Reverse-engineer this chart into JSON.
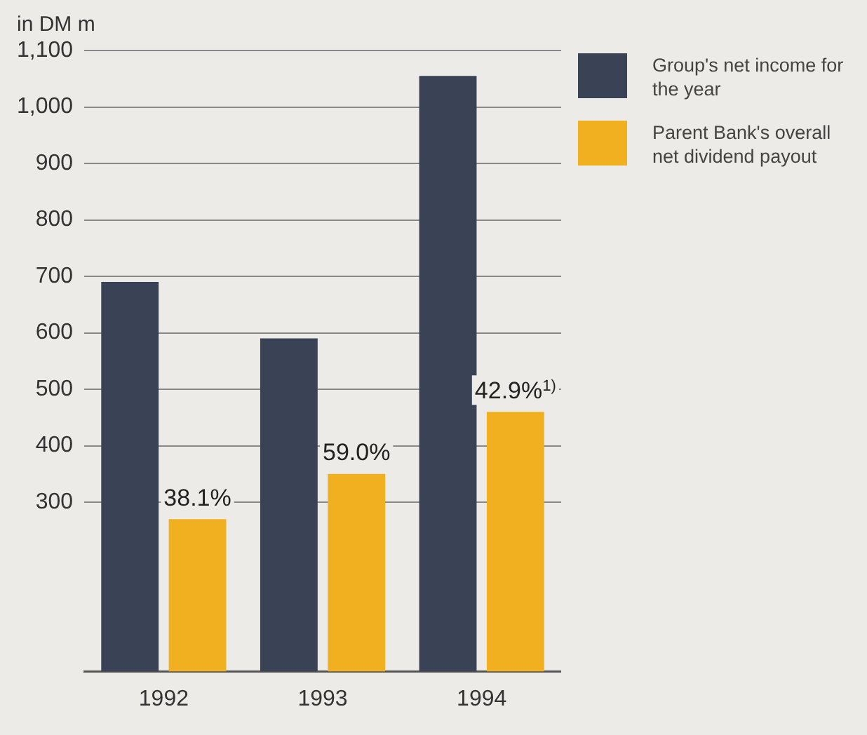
{
  "chart_data": {
    "type": "bar",
    "ylabel": "in DM m",
    "categories": [
      "1992",
      "1993",
      "1994"
    ],
    "series": [
      {
        "name": "Group's net income for the year",
        "color": "#3a4256",
        "values": [
          690,
          590,
          1055
        ]
      },
      {
        "name": "Parent Bank's overall net dividend payout",
        "color": "#f0b020",
        "values": [
          270,
          350,
          460
        ]
      }
    ],
    "annotations": [
      {
        "text": "38.1%",
        "x": "1992",
        "y": 270
      },
      {
        "text": "59.0%",
        "x": "1993",
        "y": 350
      },
      {
        "text": "42.9%$^{1)}$",
        "x": "1994",
        "y": 460
      }
    ],
    "ylim": [
      0,
      1100
    ],
    "yticks": [
      300,
      400,
      500,
      600,
      700,
      800,
      900,
      {
        "value": 1000,
        "label": "1,000"
      },
      {
        "value": 1100,
        "label": "1,100"
      }
    ],
    "grid": "y",
    "legend": "top right"
  }
}
